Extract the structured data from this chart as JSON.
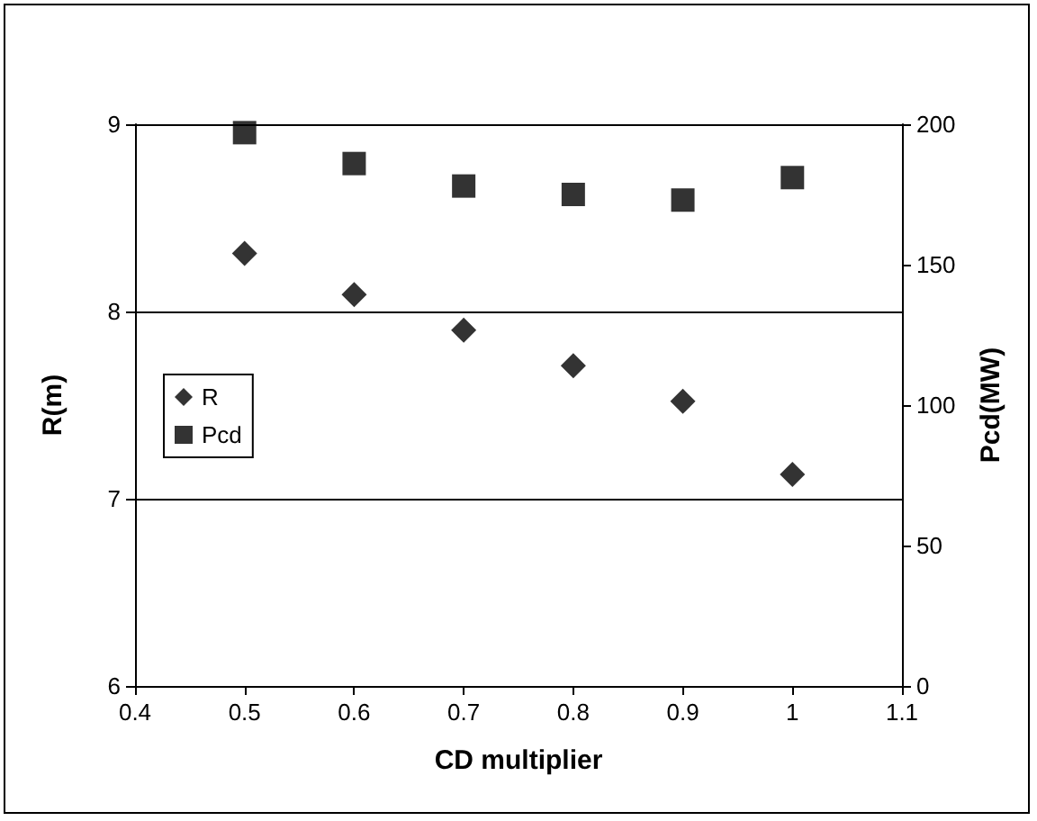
{
  "chart_data": {
    "type": "scatter",
    "xlabel": "CD multiplier",
    "ylabel": "R(m)",
    "y2label": "Pcd(MW)",
    "x": [
      0.5,
      0.6,
      0.7,
      0.8,
      0.9,
      1
    ],
    "series": [
      {
        "name": "R",
        "color": "#000000",
        "marker": "diamond",
        "values": [
          8.31,
          8.09,
          7.9,
          7.71,
          7.52,
          7.13
        ]
      },
      {
        "name": "Pcd",
        "color": "#000000",
        "marker": "square",
        "axis": "y2",
        "values": [
          197,
          186,
          178,
          175,
          173,
          181
        ]
      }
    ],
    "xlim": [
      0.4,
      1.1
    ],
    "xticks": [
      0.4,
      0.5,
      0.6,
      0.7,
      0.8,
      0.9,
      1,
      1.1
    ],
    "ylim": [
      6,
      9
    ],
    "yticks": [
      6,
      7,
      8,
      9
    ],
    "y2lim": [
      0,
      200
    ],
    "y2ticks": [
      0,
      50,
      100,
      150,
      200
    ],
    "grid": "y",
    "legend": "left"
  }
}
